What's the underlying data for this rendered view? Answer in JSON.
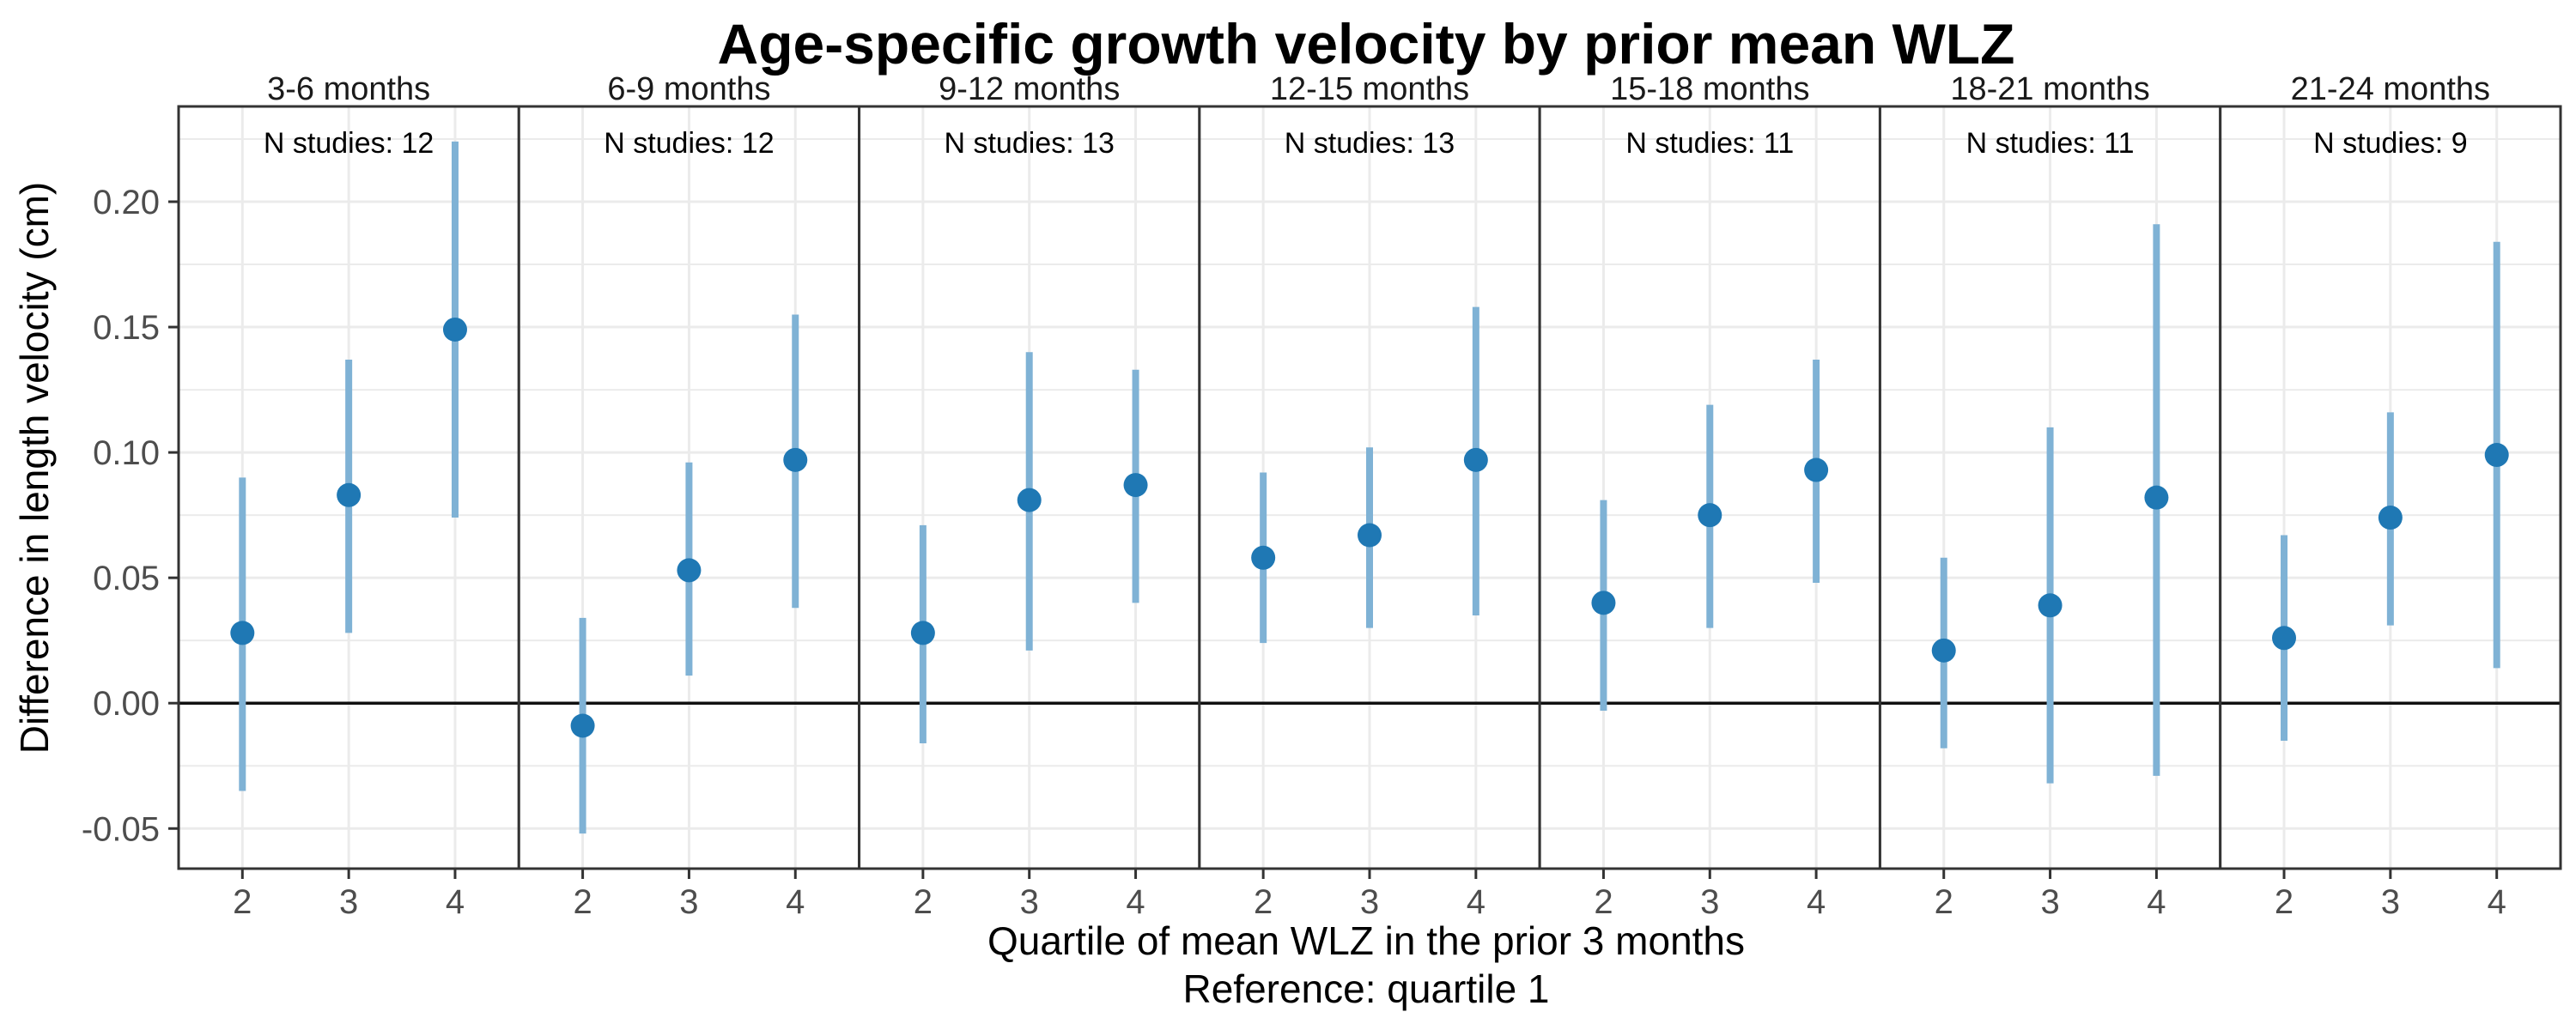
{
  "chart_data": {
    "type": "scatter",
    "title": "Age-specific growth velocity by prior mean WLZ",
    "xlabel": "Quartile of mean WLZ in the prior 3 months",
    "xlabel_line2": "Reference: quartile 1",
    "ylabel": "Difference in length velocity (cm)",
    "x_categories": [
      "2",
      "3",
      "4"
    ],
    "y_ticks": [
      "-0.05",
      "0.00",
      "0.05",
      "0.10",
      "0.15",
      "0.20"
    ],
    "ylim": [
      -0.066,
      0.238
    ],
    "grid": true,
    "reference_line": 0,
    "colors": {
      "point": "#1f78b4",
      "errorbar": "#7fb2d5",
      "panel_border": "#333333",
      "grid": "#ebebeb"
    },
    "panels": [
      {
        "label": "3-6 months",
        "annotation": "N studies: 12",
        "estimates": [
          0.028,
          0.083,
          0.149
        ],
        "lower": [
          -0.035,
          0.028,
          0.074
        ],
        "upper": [
          0.09,
          0.137,
          0.224
        ]
      },
      {
        "label": "6-9 months",
        "annotation": "N studies: 12",
        "estimates": [
          -0.009,
          0.053,
          0.097
        ],
        "lower": [
          -0.052,
          0.011,
          0.038
        ],
        "upper": [
          0.034,
          0.096,
          0.155
        ]
      },
      {
        "label": "9-12 months",
        "annotation": "N studies: 13",
        "estimates": [
          0.028,
          0.081,
          0.087
        ],
        "lower": [
          -0.016,
          0.021,
          0.04
        ],
        "upper": [
          0.071,
          0.14,
          0.133
        ]
      },
      {
        "label": "12-15 months",
        "annotation": "N studies: 13",
        "estimates": [
          0.058,
          0.067,
          0.097
        ],
        "lower": [
          0.024,
          0.03,
          0.035
        ],
        "upper": [
          0.092,
          0.102,
          0.158
        ]
      },
      {
        "label": "15-18 months",
        "annotation": "N studies: 11",
        "estimates": [
          0.04,
          0.075,
          0.093
        ],
        "lower": [
          -0.003,
          0.03,
          0.048
        ],
        "upper": [
          0.081,
          0.119,
          0.137
        ]
      },
      {
        "label": "18-21 months",
        "annotation": "N studies: 11",
        "estimates": [
          0.021,
          0.039,
          0.082
        ],
        "lower": [
          -0.018,
          -0.032,
          -0.029
        ],
        "upper": [
          0.058,
          0.11,
          0.191
        ]
      },
      {
        "label": "21-24 months",
        "annotation": "N studies: 9",
        "estimates": [
          0.026,
          0.074,
          0.099
        ],
        "lower": [
          -0.015,
          0.031,
          0.014
        ],
        "upper": [
          0.067,
          0.116,
          0.184
        ]
      }
    ]
  }
}
